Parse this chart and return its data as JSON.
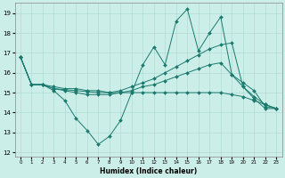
{
  "xlabel": "Humidex (Indice chaleur)",
  "bg_color": "#cceee8",
  "line_color": "#1a7a6e",
  "xlim": [
    -0.5,
    23.5
  ],
  "ylim": [
    11.8,
    19.5
  ],
  "yticks": [
    12,
    13,
    14,
    15,
    16,
    17,
    18,
    19
  ],
  "xticks": [
    0,
    1,
    2,
    3,
    4,
    5,
    6,
    7,
    8,
    9,
    10,
    11,
    12,
    13,
    14,
    15,
    16,
    17,
    18,
    19,
    20,
    21,
    22,
    23
  ],
  "series": [
    [
      16.8,
      15.4,
      15.4,
      15.1,
      14.6,
      13.7,
      13.1,
      12.4,
      12.8,
      13.6,
      15.0,
      16.4,
      17.3,
      16.4,
      18.6,
      19.2,
      17.1,
      18.0,
      18.8,
      15.9,
      15.3,
      14.7,
      14.2,
      14.2
    ],
    [
      16.8,
      15.4,
      15.4,
      15.3,
      15.2,
      15.2,
      15.1,
      15.1,
      15.0,
      15.1,
      15.3,
      15.5,
      15.7,
      16.0,
      16.3,
      16.6,
      16.9,
      17.2,
      17.4,
      17.5,
      15.3,
      14.8,
      14.4,
      14.2
    ],
    [
      16.8,
      15.4,
      15.4,
      15.2,
      15.1,
      15.0,
      14.9,
      14.9,
      14.9,
      15.0,
      15.1,
      15.3,
      15.4,
      15.6,
      15.8,
      16.0,
      16.2,
      16.4,
      16.5,
      15.9,
      15.5,
      15.1,
      14.3,
      14.2
    ],
    [
      16.8,
      15.4,
      15.4,
      15.2,
      15.15,
      15.1,
      15.05,
      15.0,
      15.0,
      15.0,
      15.0,
      15.0,
      15.0,
      15.0,
      15.0,
      15.0,
      15.0,
      15.0,
      15.0,
      14.9,
      14.8,
      14.6,
      14.4,
      14.2
    ]
  ]
}
